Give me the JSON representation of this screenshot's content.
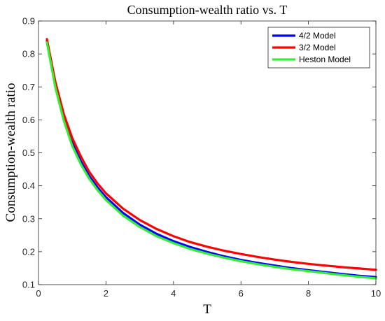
{
  "chart_data": {
    "type": "line",
    "title": "Consumption-wealth ratio vs. T",
    "xlabel": "T",
    "ylabel": "Consumption-wealth ratio",
    "xlim": [
      0,
      10
    ],
    "ylim": [
      0.1,
      0.9
    ],
    "xticks": [
      "0",
      "2",
      "4",
      "6",
      "8",
      "10"
    ],
    "yticks": [
      "0.1",
      "0.2",
      "0.3",
      "0.4",
      "0.5",
      "0.6",
      "0.7",
      "0.8",
      "0.9"
    ],
    "grid": false,
    "legend_position": "top-right",
    "x": [
      0.25,
      0.5,
      0.75,
      1,
      1.25,
      1.5,
      1.75,
      2,
      2.5,
      3,
      3.5,
      4,
      4.5,
      5,
      5.5,
      6,
      6.5,
      7,
      7.5,
      8,
      8.5,
      9,
      9.5,
      10
    ],
    "series": [
      {
        "name": "4/2 Model",
        "color": "#0000ff",
        "values": [
          0.84,
          0.705,
          0.605,
          0.53,
          0.475,
          0.43,
          0.395,
          0.365,
          0.318,
          0.282,
          0.254,
          0.232,
          0.214,
          0.199,
          0.186,
          0.175,
          0.166,
          0.158,
          0.15,
          0.144,
          0.138,
          0.132,
          0.127,
          0.123
        ]
      },
      {
        "name": "3/2 Model",
        "color": "#ff0000",
        "values": [
          0.845,
          0.715,
          0.617,
          0.545,
          0.49,
          0.443,
          0.407,
          0.377,
          0.331,
          0.296,
          0.269,
          0.247,
          0.229,
          0.215,
          0.203,
          0.193,
          0.184,
          0.176,
          0.169,
          0.163,
          0.158,
          0.153,
          0.149,
          0.145
        ]
      },
      {
        "name": "Heston Model",
        "color": "#33ee33",
        "values": [
          0.835,
          0.698,
          0.597,
          0.521,
          0.466,
          0.422,
          0.387,
          0.357,
          0.31,
          0.275,
          0.247,
          0.226,
          0.208,
          0.194,
          0.182,
          0.171,
          0.162,
          0.154,
          0.147,
          0.141,
          0.135,
          0.129,
          0.124,
          0.119
        ]
      }
    ]
  }
}
